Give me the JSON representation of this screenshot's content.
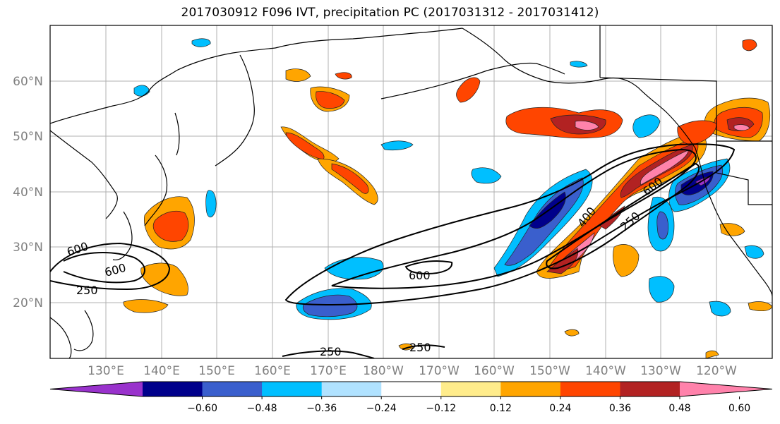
{
  "title": "2017030912 F096 IVT, precipitation PC (2017031312 - 2017031412)",
  "lon_labels": [
    "130°E",
    "140°E",
    "150°E",
    "160°E",
    "170°E",
    "180°W",
    "170°W",
    "160°W",
    "150°W",
    "140°W",
    "130°W",
    "120°W"
  ],
  "lat_labels": [
    "60°N",
    "50°N",
    "40°N",
    "30°N",
    "20°N"
  ],
  "colorbar": {
    "colors": [
      "#9932cc",
      "#00008b",
      "#3a5fcd",
      "#00bfff",
      "#b0e2ff",
      "#ffffff",
      "#ffec8b",
      "#ffa500",
      "#ff4500",
      "#b22222",
      "#ff82ab"
    ],
    "tick_labels": [
      "−0.60",
      "−0.48",
      "−0.36",
      "−0.24",
      "−0.12",
      "0.12",
      "0.24",
      "0.36",
      "0.48",
      "0.60"
    ]
  },
  "contour_labels": [
    "600",
    "600",
    "250",
    "600",
    "250",
    "250",
    "400",
    "250",
    "600"
  ]
}
